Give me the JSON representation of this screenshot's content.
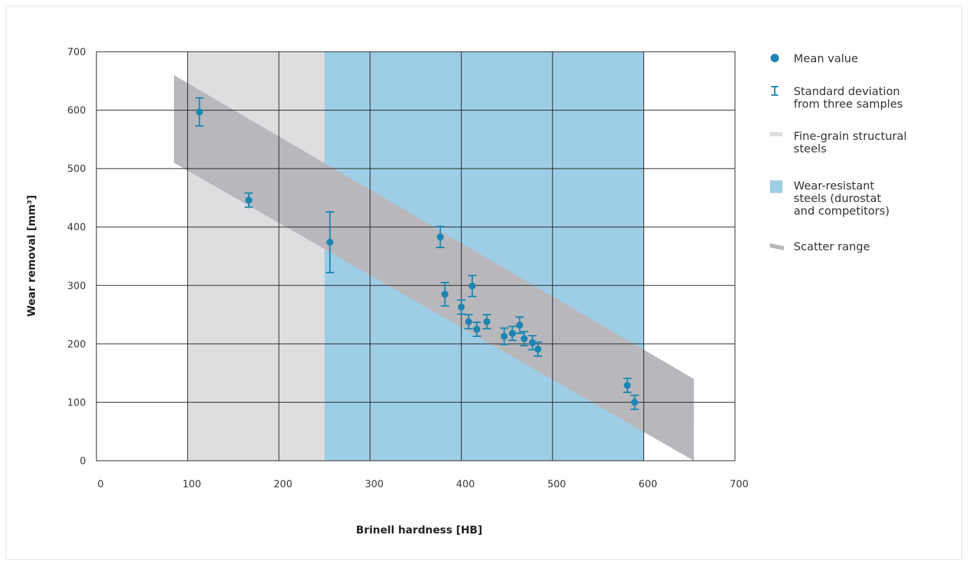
{
  "chart_data": {
    "type": "scatter",
    "xlabel": "Brinell hardness [HB]",
    "ylabel": "Wear removal [mm³]",
    "xlim": [
      0,
      700
    ],
    "ylim": [
      0,
      700
    ],
    "xticks": [
      "0",
      "100",
      "200",
      "300",
      "400",
      "500",
      "600",
      "700"
    ],
    "yticks": [
      "0",
      "100",
      "200",
      "300",
      "400",
      "500",
      "600",
      "700"
    ],
    "grid": true,
    "legend_position": "right",
    "regions": [
      {
        "name": "Fine-grain structural steels",
        "x_from": 100,
        "x_to": 250,
        "color": "#dedee0"
      },
      {
        "name": "Wear-resistant steels (durostat and competitors)",
        "x_from": 250,
        "x_to": 600,
        "color": "#9ecde6"
      }
    ],
    "scatter_range": {
      "name": "Scatter range",
      "color": "#b8b8bc",
      "polygon": [
        [
          85,
          660
        ],
        [
          655,
          140
        ],
        [
          655,
          0
        ],
        [
          85,
          510
        ]
      ]
    },
    "series": [
      {
        "name": "Mean value",
        "color": "#1c86b0",
        "points": [
          {
            "x": 113,
            "y": 597,
            "err": 24
          },
          {
            "x": 167,
            "y": 446,
            "err": 12
          },
          {
            "x": 256,
            "y": 374,
            "err": 52
          },
          {
            "x": 377,
            "y": 383,
            "err": 18
          },
          {
            "x": 382,
            "y": 285,
            "err": 20
          },
          {
            "x": 400,
            "y": 263,
            "err": 12
          },
          {
            "x": 408,
            "y": 238,
            "err": 12
          },
          {
            "x": 412,
            "y": 299,
            "err": 18
          },
          {
            "x": 417,
            "y": 225,
            "err": 12
          },
          {
            "x": 428,
            "y": 238,
            "err": 12
          },
          {
            "x": 447,
            "y": 213,
            "err": 14
          },
          {
            "x": 456,
            "y": 218,
            "err": 12
          },
          {
            "x": 464,
            "y": 232,
            "err": 14
          },
          {
            "x": 469,
            "y": 209,
            "err": 12
          },
          {
            "x": 478,
            "y": 202,
            "err": 12
          },
          {
            "x": 484,
            "y": 191,
            "err": 12
          },
          {
            "x": 582,
            "y": 129,
            "err": 12
          },
          {
            "x": 590,
            "y": 100,
            "err": 12
          }
        ]
      }
    ],
    "legend": [
      {
        "label": "Mean value",
        "icon": "dot-icon"
      },
      {
        "label": "Standard deviation from three samples",
        "lines": [
          "Standard deviation",
          "from three samples"
        ],
        "icon": "error-bar-icon"
      },
      {
        "label": "Fine-grain structural steels",
        "lines": [
          "Fine-grain structural",
          "steels"
        ],
        "icon": "grey-swatch-icon"
      },
      {
        "label": "Wear-resistant steels (durostat and competitors)",
        "lines": [
          "Wear-resistant",
          "steels (durostat",
          "and competitors)"
        ],
        "icon": "blue-swatch-icon"
      },
      {
        "label": "Scatter range",
        "icon": "scatter-range-icon"
      }
    ]
  }
}
